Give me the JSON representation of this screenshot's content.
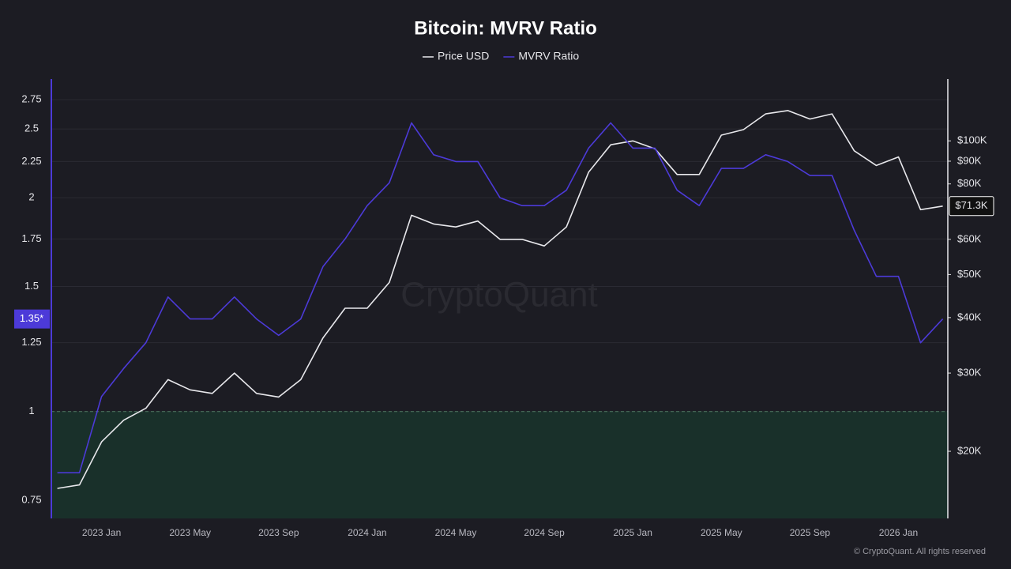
{
  "chart_data": {
    "type": "line",
    "title": "Bitcoin: MVRV Ratio",
    "watermark": "CryptoQuant",
    "footer": "© CryptoQuant. All rights reserved",
    "x": [
      null,
      null,
      "2023 Jan",
      null,
      null,
      null,
      "2023 May",
      null,
      null,
      null,
      "2023 Sep",
      null,
      null,
      null,
      "2024 Jan",
      null,
      null,
      null,
      "2024 May",
      null,
      null,
      null,
      "2024 Sep",
      null,
      null,
      null,
      "2025 Jan",
      null,
      null,
      null,
      "2025 May",
      null,
      null,
      null,
      "2025 Sep",
      null,
      null,
      null,
      "2026 Jan",
      null,
      null
    ],
    "series": [
      {
        "name": "Price USD",
        "color": "#e8e8ec",
        "axis": "y2",
        "last_label": "$71.3K",
        "values": [
          16500,
          16800,
          21000,
          23500,
          25000,
          29000,
          27500,
          27000,
          30000,
          27000,
          26500,
          29000,
          36000,
          42000,
          42000,
          48000,
          68000,
          65000,
          64000,
          66000,
          60000,
          60000,
          58000,
          64000,
          85000,
          98000,
          100000,
          96000,
          84000,
          84000,
          103000,
          106000,
          115000,
          117000,
          112000,
          115000,
          95000,
          88000,
          92000,
          70000,
          71300
        ]
      },
      {
        "name": "MVRV Ratio",
        "color": "#4c3ad8",
        "axis": "y",
        "last_label": "1.35*",
        "values": [
          0.82,
          0.82,
          1.05,
          1.15,
          1.25,
          1.45,
          1.35,
          1.35,
          1.45,
          1.35,
          1.28,
          1.35,
          1.6,
          1.75,
          1.95,
          2.1,
          2.55,
          2.3,
          2.25,
          2.25,
          2.0,
          1.95,
          1.95,
          2.05,
          2.35,
          2.55,
          2.35,
          2.35,
          2.05,
          1.95,
          2.2,
          2.2,
          2.3,
          2.25,
          2.15,
          2.15,
          1.8,
          1.55,
          1.55,
          1.25,
          1.35
        ]
      }
    ],
    "log_y": true,
    "log_y2": true,
    "threshold": 1,
    "ylim": [
      0.707,
      2.94
    ],
    "yticks": [
      0.75,
      1,
      1.25,
      1.5,
      1.75,
      2,
      2.25,
      2.5,
      2.75
    ],
    "y2lim": [
      14120,
      137800
    ],
    "y2ticks": [
      {
        "value": 20000,
        "label": "$20K"
      },
      {
        "value": 30000,
        "label": "$30K"
      },
      {
        "value": 40000,
        "label": "$40K"
      },
      {
        "value": 50000,
        "label": "$50K"
      },
      {
        "value": 60000,
        "label": "$60K"
      },
      {
        "value": 80000,
        "label": "$80K"
      },
      {
        "value": 90000,
        "label": "$90K"
      },
      {
        "value": 100000,
        "label": "$100K"
      }
    ]
  }
}
